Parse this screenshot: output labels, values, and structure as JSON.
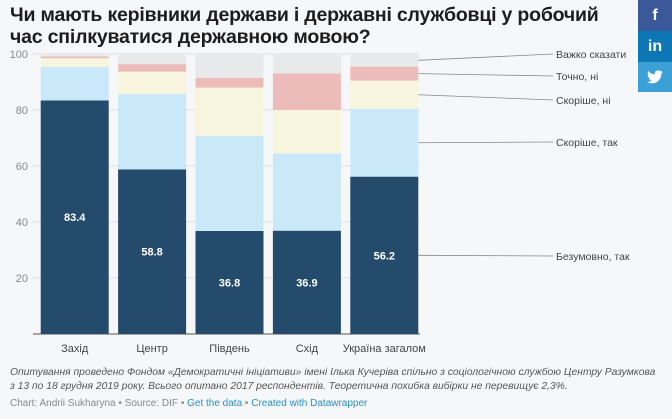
{
  "title": "Чи мають керівники держави і державні службовці у робочий час спілкуватися державною мовою?",
  "social": {
    "facebook": "f",
    "linkedin": "in",
    "twitter": "🐦"
  },
  "notes": "Опитування проведено Фондом «Демократичні ініціативи» імені Ілька Кучеріва спільно з соціологічною службою Центру Разумкова з 13 по 18 грудня 2019 року. Всього опитано 2017 респондентів. Теоретична похибка вибірки не перевищує 2,3%.",
  "byline": {
    "chart": "Chart: Andrii Sukharyna",
    "sep": " • ",
    "source": "Source: DIF",
    "get_data": "Get the data",
    "created": "Created with Datawrapper"
  },
  "chart_data": {
    "type": "bar",
    "stacked": true,
    "title": "Чи мають керівники держави і державні службовці у робочий час спілкуватися державною мовою?",
    "categories": [
      "Захід",
      "Центр",
      "Південь",
      "Схід",
      "Україна загалом"
    ],
    "series": [
      {
        "name": "Безумовно, так",
        "color": "#244b6b",
        "values": [
          83.4,
          58.8,
          36.8,
          36.9,
          56.2
        ]
      },
      {
        "name": "Скоріше, так",
        "color": "#c9e8f8",
        "values": [
          12.0,
          27.0,
          34.0,
          27.6,
          24.2
        ]
      },
      {
        "name": "Скоріше, ні",
        "color": "#f8f5df",
        "values": [
          3.1,
          7.9,
          17.2,
          15.5,
          10.1
        ]
      },
      {
        "name": "Точно, ні",
        "color": "#ecbcba",
        "values": [
          0.6,
          2.7,
          3.5,
          13.1,
          5.0
        ]
      },
      {
        "name": "Важко сказати",
        "color": "#e8e9eb",
        "values": [
          0.9,
          3.6,
          8.5,
          6.9,
          4.5
        ]
      }
    ],
    "data_labels_series": "Безумовно, так",
    "yticks": [
      20,
      40,
      60,
      80,
      100
    ],
    "ylim": [
      0,
      100
    ],
    "xlabel": "",
    "ylabel": "",
    "grid": true,
    "legend": "right (direct labels on last bar)"
  }
}
